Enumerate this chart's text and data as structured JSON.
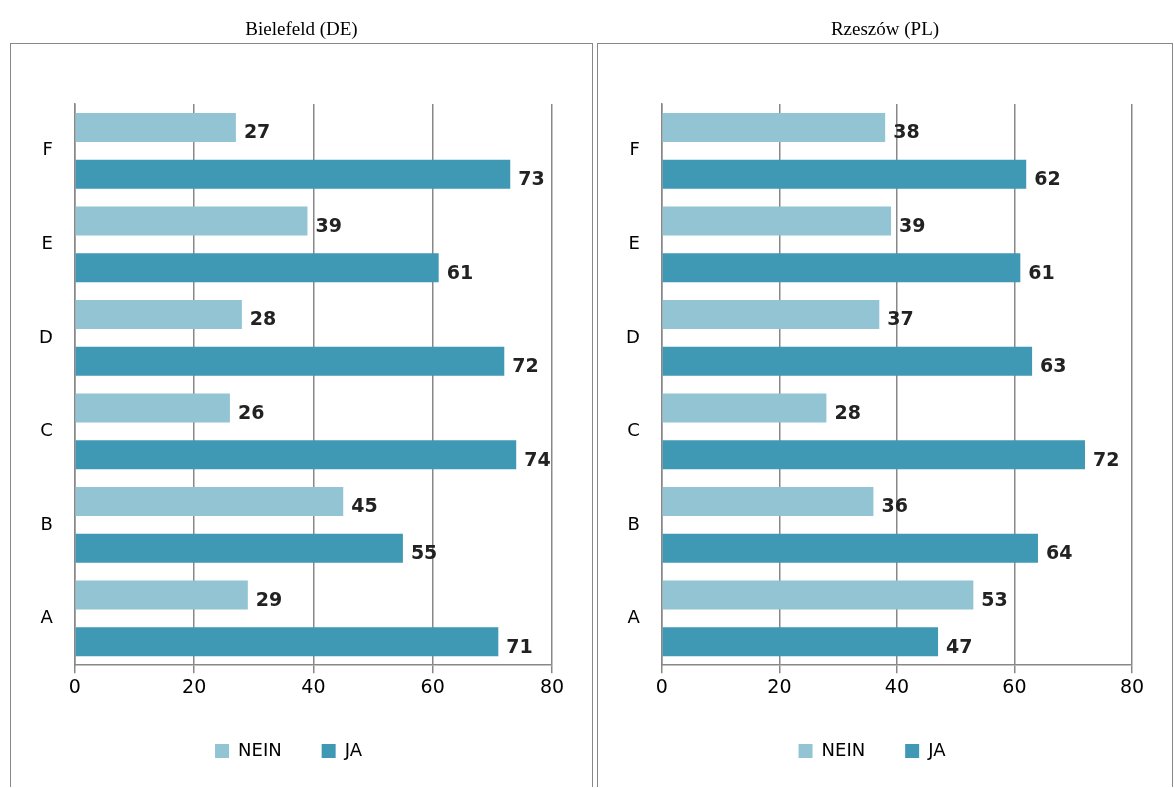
{
  "chart_data": [
    {
      "type": "bar",
      "orientation": "horizontal",
      "title": "Bielefeld (DE)",
      "categories": [
        "F",
        "E",
        "D",
        "C",
        "B",
        "A"
      ],
      "series": [
        {
          "name": "NEIN",
          "color": "#92c4d4",
          "values": [
            27,
            39,
            28,
            26,
            45,
            29
          ]
        },
        {
          "name": "JA",
          "color": "#3f98b4",
          "values": [
            73,
            61,
            72,
            74,
            55,
            71
          ]
        }
      ],
      "xlim": [
        0,
        80
      ],
      "xticks": [
        0,
        20,
        40,
        60,
        80
      ],
      "grid": "x",
      "legend": "bottom",
      "data_labels": true
    },
    {
      "type": "bar",
      "orientation": "horizontal",
      "title": "Rzeszów (PL)",
      "categories": [
        "F",
        "E",
        "D",
        "C",
        "B",
        "A"
      ],
      "series": [
        {
          "name": "NEIN",
          "color": "#92c4d4",
          "values": [
            38,
            39,
            37,
            28,
            36,
            53
          ]
        },
        {
          "name": "JA",
          "color": "#3f98b4",
          "values": [
            62,
            61,
            63,
            72,
            64,
            47
          ]
        }
      ],
      "xlim": [
        0,
        80
      ],
      "xticks": [
        0,
        20,
        40,
        60,
        80
      ],
      "grid": "x",
      "legend": "bottom",
      "data_labels": true
    }
  ]
}
